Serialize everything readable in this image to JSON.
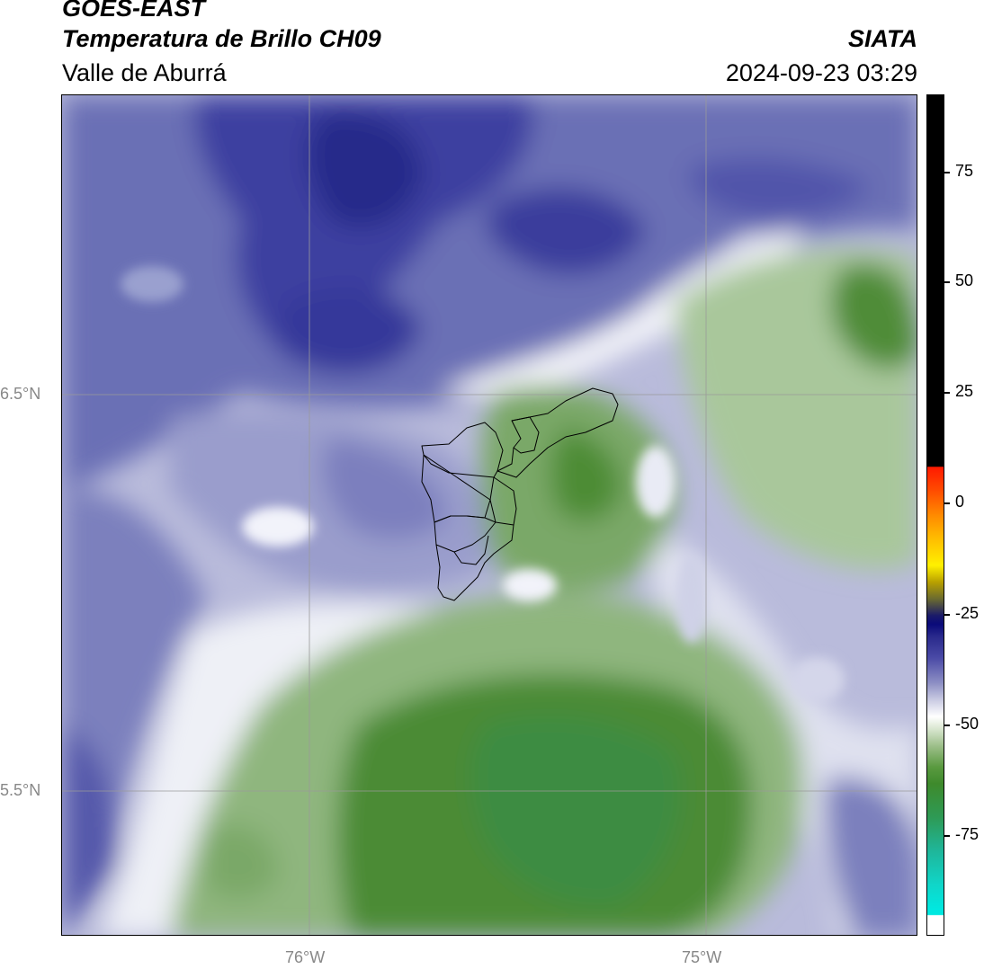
{
  "header": {
    "satellite": "GOES-EAST",
    "product": "Temperatura de Brillo CH09",
    "region": "Valle de Aburrá",
    "organization": "SIATA",
    "datetime": "2024-09-23 03:29"
  },
  "map": {
    "lat_labels": [
      "6.5°N",
      "5.5°N"
    ],
    "lon_labels": [
      "76°W",
      "75°W"
    ]
  },
  "colorbar": {
    "tick_labels": [
      "75",
      "50",
      "25",
      "0",
      "-25",
      "-50",
      "-75"
    ],
    "colors": {
      "warm_top": "#000000",
      "hot": "#ff4a00",
      "yellow": "#fff000",
      "dark_blue": "#0a0a7a",
      "lavender": "#8d8fc4",
      "white": "#ffffff",
      "green": "#3e8a2c",
      "cyan": "#00e8e0"
    }
  }
}
